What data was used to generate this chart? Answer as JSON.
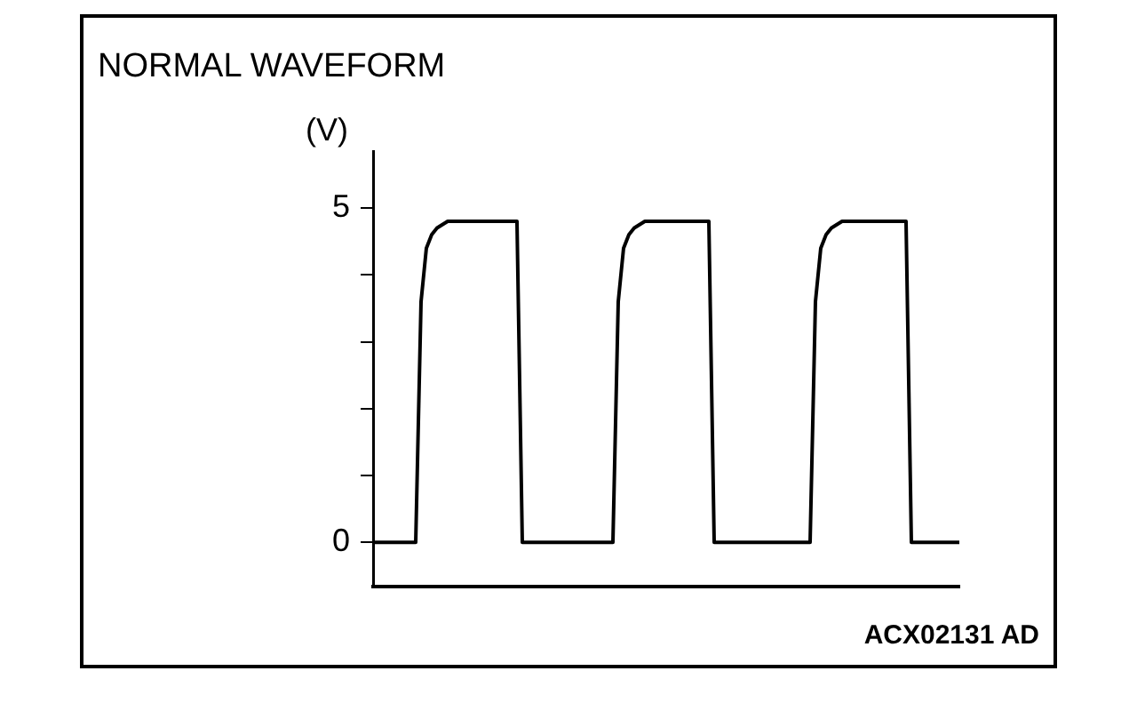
{
  "chart_data": {
    "type": "line",
    "title": "NORMAL WAVEFORM",
    "ylabel": "(V)",
    "annotations": [
      "ACX02131 AD"
    ],
    "categories": [
      null,
      null,
      null,
      null,
      null,
      null,
      null,
      null,
      null,
      null,
      null,
      null,
      null,
      null,
      null,
      null,
      null,
      null,
      null,
      null,
      null,
      null,
      null,
      null,
      null,
      null,
      null,
      null,
      null,
      null,
      null,
      null,
      null,
      null,
      null,
      null,
      null,
      null,
      null,
      null,
      null,
      null,
      null,
      null,
      null,
      null,
      null,
      null,
      null,
      null,
      null,
      null,
      null,
      null,
      null,
      null,
      null,
      null,
      null,
      null,
      null,
      null,
      null,
      null,
      null,
      null,
      null,
      null,
      null,
      null,
      null,
      null,
      null,
      null,
      null,
      null,
      null,
      null,
      null,
      null,
      null,
      null,
      null,
      null,
      null,
      null,
      null,
      null,
      null,
      null,
      null,
      null,
      null,
      null,
      null,
      null,
      null,
      null,
      null,
      null,
      null,
      null,
      null,
      null,
      null,
      null,
      null,
      null,
      null,
      null,
      null
    ],
    "values": [
      0,
      0,
      0,
      0,
      0,
      0,
      0,
      0,
      0,
      3.6,
      4.4,
      4.6,
      4.7,
      4.75,
      4.8,
      4.8,
      4.8,
      4.8,
      4.8,
      4.8,
      4.8,
      4.8,
      4.8,
      4.8,
      4.8,
      4.8,
      4.8,
      4.8,
      0,
      0,
      0,
      0,
      0,
      0,
      0,
      0,
      0,
      0,
      0,
      0,
      0,
      0,
      0,
      0,
      0,
      0,
      3.6,
      4.4,
      4.6,
      4.7,
      4.75,
      4.8,
      4.8,
      4.8,
      4.8,
      4.8,
      4.8,
      4.8,
      4.8,
      4.8,
      4.8,
      4.8,
      4.8,
      4.8,
      0,
      0,
      0,
      0,
      0,
      0,
      0,
      0,
      0,
      0,
      0,
      0,
      0,
      0,
      0,
      0,
      0,
      0,
      0,
      3.6,
      4.4,
      4.6,
      4.7,
      4.75,
      4.8,
      4.8,
      4.8,
      4.8,
      4.8,
      4.8,
      4.8,
      4.8,
      4.8,
      4.8,
      4.8,
      4.8,
      4.8,
      0,
      0,
      0,
      0,
      0,
      0,
      0,
      0,
      0,
      0
    ],
    "color": "#000000",
    "ylim": [
      -0.66,
      5.85
    ],
    "yticks": [
      0,
      {
        "value": 1,
        "label": null
      },
      {
        "value": 2,
        "label": null
      },
      {
        "value": 3,
        "label": null
      },
      {
        "value": 4,
        "label": null
      },
      5
    ],
    "tick_labels": "y",
    "marker": "none",
    "line_style": "solid"
  }
}
